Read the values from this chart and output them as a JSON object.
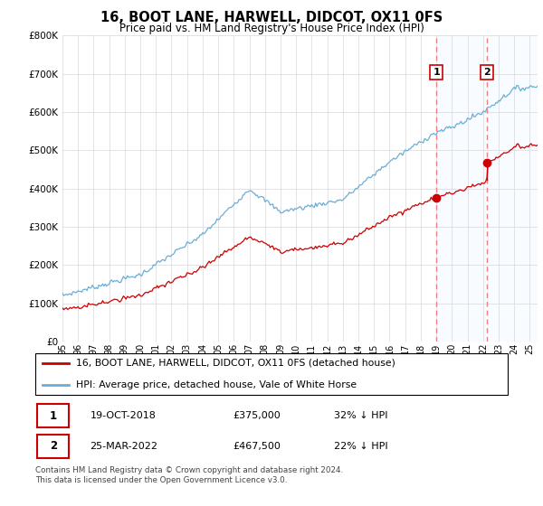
{
  "title": "16, BOOT LANE, HARWELL, DIDCOT, OX11 0FS",
  "subtitle": "Price paid vs. HM Land Registry's House Price Index (HPI)",
  "footnote": "Contains HM Land Registry data © Crown copyright and database right 2024.\nThis data is licensed under the Open Government Licence v3.0.",
  "legend1": "16, BOOT LANE, HARWELL, DIDCOT, OX11 0FS (detached house)",
  "legend2": "HPI: Average price, detached house, Vale of White Horse",
  "transaction1_date": "19-OCT-2018",
  "transaction1_price": "£375,000",
  "transaction1_hpi": "32% ↓ HPI",
  "transaction1_year": 2019.0,
  "transaction1_value": 375000,
  "transaction2_date": "25-MAR-2022",
  "transaction2_price": "£467,500",
  "transaction2_hpi": "22% ↓ HPI",
  "transaction2_year": 2022.25,
  "transaction2_value": 467500,
  "hpi_color": "#6baed6",
  "price_color": "#cc0000",
  "vline_color": "#f08080",
  "highlight_color": "#ddeeff",
  "ylim": [
    0,
    800000
  ],
  "yticks": [
    0,
    100000,
    200000,
    300000,
    400000,
    500000,
    600000,
    700000,
    800000
  ],
  "background_color": "#ffffff",
  "grid_color": "#d8d8d8",
  "xlim_left": 1995,
  "xlim_right": 2025.5
}
